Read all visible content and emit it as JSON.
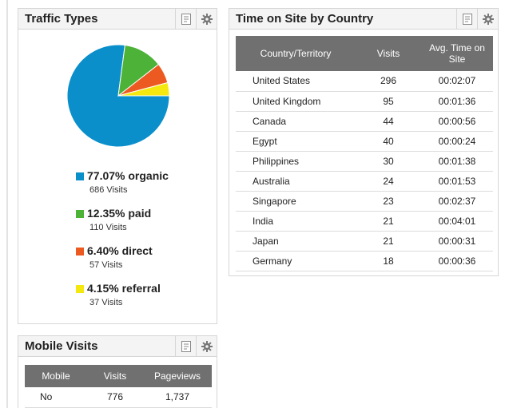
{
  "traffic_types": {
    "title": "Traffic Types",
    "pie_colors": [
      "#0a8fcb",
      "#4db238",
      "#ed5a21",
      "#f5e80e"
    ],
    "items": [
      {
        "label": "77.07% organic",
        "visits": "686 Visits",
        "percent": 77.07,
        "color": "#0a8fcb"
      },
      {
        "label": "12.35% paid",
        "visits": "110 Visits",
        "percent": 12.35,
        "color": "#4db238"
      },
      {
        "label": "6.40% direct",
        "visits": "57 Visits",
        "percent": 6.4,
        "color": "#ed5a21"
      },
      {
        "label": "4.15% referral",
        "visits": "37 Visits",
        "percent": 4.15,
        "color": "#f5e80e"
      }
    ]
  },
  "country": {
    "title": "Time on Site by Country",
    "headers": {
      "country": "Country/Territory",
      "visits": "Visits",
      "time_line1": "Avg. Time on",
      "time_line2": "Site"
    },
    "rows": [
      {
        "country": "United States",
        "visits": "296",
        "time": "00:02:07"
      },
      {
        "country": "United Kingdom",
        "visits": "95",
        "time": "00:01:36"
      },
      {
        "country": "Canada",
        "visits": "44",
        "time": "00:00:56"
      },
      {
        "country": "Egypt",
        "visits": "40",
        "time": "00:00:24"
      },
      {
        "country": "Philippines",
        "visits": "30",
        "time": "00:01:38"
      },
      {
        "country": "Australia",
        "visits": "24",
        "time": "00:01:53"
      },
      {
        "country": "Singapore",
        "visits": "23",
        "time": "00:02:37"
      },
      {
        "country": "India",
        "visits": "21",
        "time": "00:04:01"
      },
      {
        "country": "Japan",
        "visits": "21",
        "time": "00:00:31"
      },
      {
        "country": "Germany",
        "visits": "18",
        "time": "00:00:36"
      }
    ]
  },
  "mobile": {
    "title": "Mobile Visits",
    "headers": {
      "mobile": "Mobile",
      "visits": "Visits",
      "pageviews": "Pageviews"
    },
    "rows": [
      {
        "mobile": "No",
        "visits": "776",
        "pageviews": "1,737"
      }
    ]
  },
  "icons": {
    "report": "report-icon",
    "settings": "gear-icon"
  }
}
